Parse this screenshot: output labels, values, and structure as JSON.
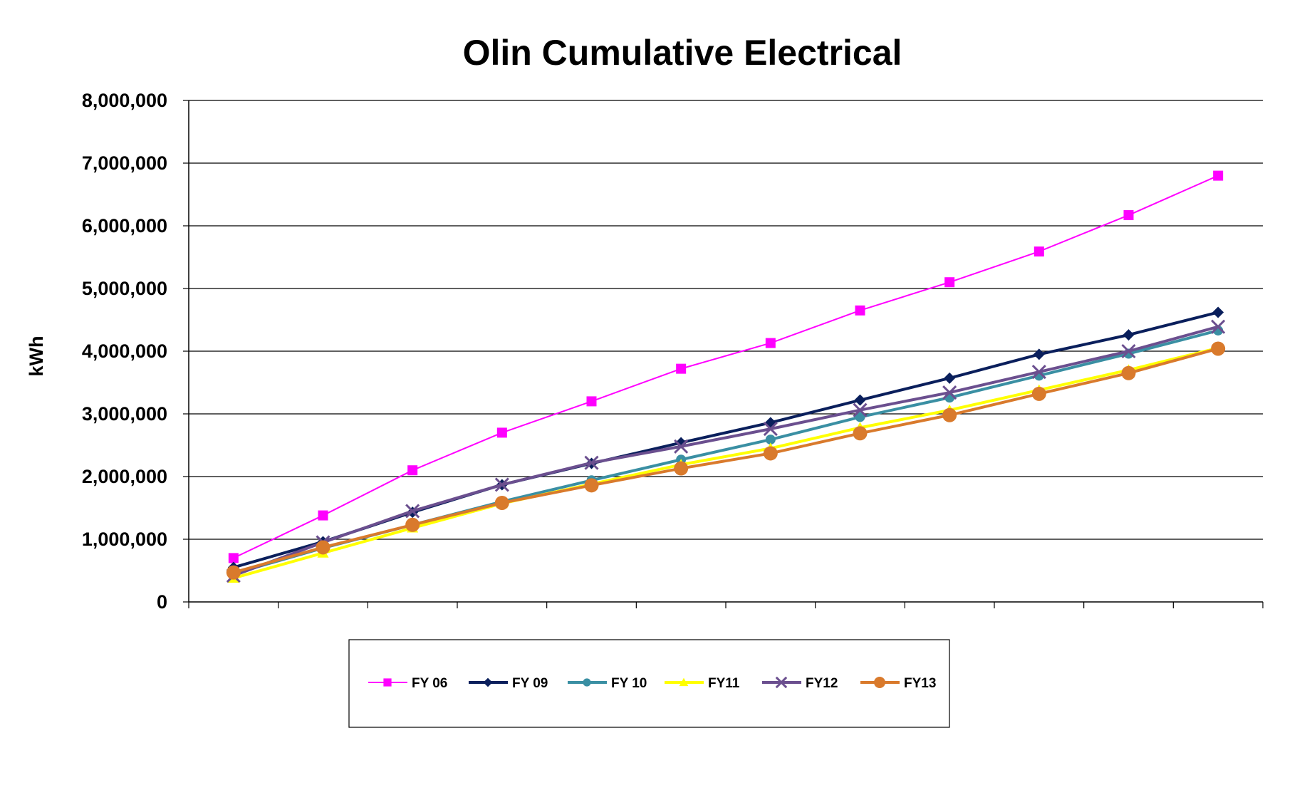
{
  "chart_data": {
    "type": "line",
    "title": "Olin Cumulative Electrical",
    "xlabel": "",
    "ylabel": "kWh",
    "ylim": [
      0,
      8000000
    ],
    "ytick_step": 1000000,
    "y_tick_labels": [
      "0",
      "1,000,000",
      "2,000,000",
      "3,000,000",
      "4,000,000",
      "5,000,000",
      "6,000,000",
      "7,000,000",
      "8,000,000"
    ],
    "num_categories": 12,
    "grid": "horizontal",
    "legend_position": "bottom",
    "series": [
      {
        "name": "FY 06",
        "color": "#FF00FF",
        "marker": "square",
        "line_width": 2,
        "values": [
          700000,
          1380000,
          2100000,
          2700000,
          3200000,
          3720000,
          4130000,
          4650000,
          5100000,
          5590000,
          6170000,
          6800000
        ]
      },
      {
        "name": "FY 09",
        "color": "#0A1F5C",
        "marker": "diamond",
        "line_width": 4,
        "values": [
          550000,
          960000,
          1430000,
          1870000,
          2210000,
          2540000,
          2860000,
          3220000,
          3570000,
          3950000,
          4260000,
          4620000
        ]
      },
      {
        "name": "FY 10",
        "color": "#3A8FA3",
        "marker": "circle",
        "line_width": 4,
        "values": [
          450000,
          860000,
          1230000,
          1600000,
          1940000,
          2270000,
          2590000,
          2950000,
          3260000,
          3610000,
          3960000,
          4330000
        ]
      },
      {
        "name": "FY11",
        "color": "#FFFF00",
        "marker": "triangle",
        "line_width": 4,
        "values": [
          380000,
          780000,
          1180000,
          1570000,
          1880000,
          2190000,
          2450000,
          2780000,
          3060000,
          3380000,
          3700000,
          4050000
        ]
      },
      {
        "name": "FY12",
        "color": "#6B4F8F",
        "marker": "x",
        "line_width": 4,
        "values": [
          420000,
          950000,
          1450000,
          1870000,
          2220000,
          2480000,
          2760000,
          3060000,
          3340000,
          3670000,
          4000000,
          4390000
        ]
      },
      {
        "name": "FY13",
        "color": "#D97A2C",
        "marker": "circle-large",
        "line_width": 4,
        "values": [
          470000,
          870000,
          1230000,
          1580000,
          1860000,
          2130000,
          2370000,
          2690000,
          2980000,
          3320000,
          3650000,
          4040000
        ]
      }
    ]
  }
}
